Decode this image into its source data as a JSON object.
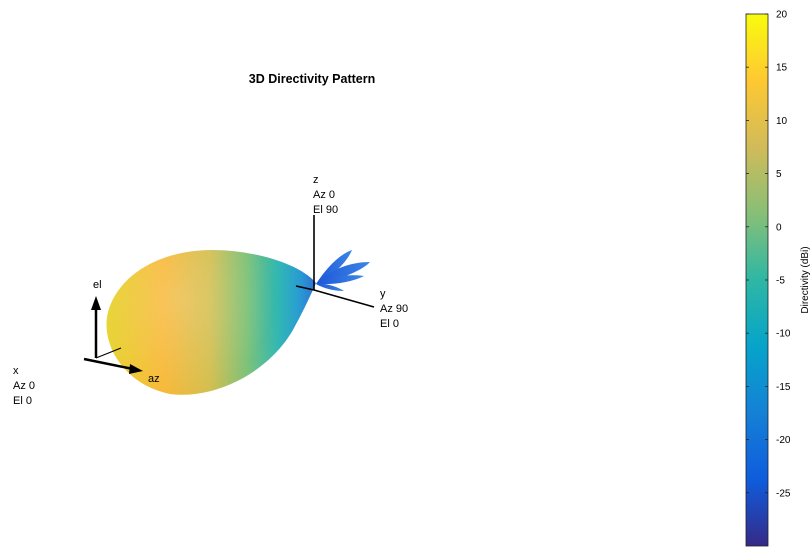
{
  "chart_data": {
    "type": "3d-radiation-pattern",
    "title": "3D Directivity Pattern",
    "axes": {
      "x": {
        "name": "x",
        "az": "Az 0",
        "el": "El 0"
      },
      "y": {
        "name": "y",
        "az": "Az 90",
        "el": "El 0"
      },
      "z": {
        "name": "z",
        "az": "Az 0",
        "el": "El 90"
      }
    },
    "orientation_labels": {
      "el": "el",
      "az": "az"
    },
    "colorbar": {
      "label": "Directivity (dBi)",
      "range": [
        -30,
        20
      ],
      "ticks": [
        20,
        15,
        10,
        5,
        0,
        -5,
        -10,
        -15,
        -20,
        -25
      ],
      "colormap": "parula",
      "colors": [
        "#352a87",
        "#0f5cdd",
        "#1481d6",
        "#06a4ca",
        "#2eb7a4",
        "#87bf77",
        "#d1bb59",
        "#fec832",
        "#f9fb0e"
      ]
    }
  }
}
